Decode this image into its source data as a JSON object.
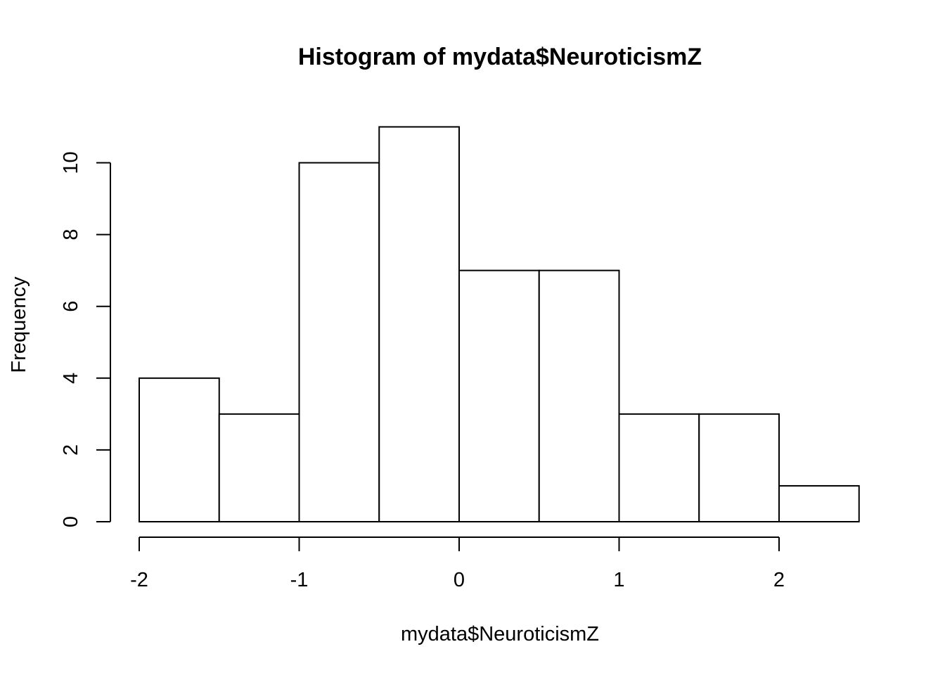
{
  "chart_data": {
    "type": "bar",
    "subtype": "histogram",
    "title": "Histogram of mydata$NeuroticismZ",
    "xlabel": "mydata$NeuroticismZ",
    "ylabel": "Frequency",
    "bins": [
      {
        "x0": -2.0,
        "x1": -1.5,
        "count": 4
      },
      {
        "x0": -1.5,
        "x1": -1.0,
        "count": 3
      },
      {
        "x0": -1.0,
        "x1": -0.5,
        "count": 10
      },
      {
        "x0": -0.5,
        "x1": 0.0,
        "count": 11
      },
      {
        "x0": 0.0,
        "x1": 0.5,
        "count": 7
      },
      {
        "x0": 0.5,
        "x1": 1.0,
        "count": 7
      },
      {
        "x0": 1.0,
        "x1": 1.5,
        "count": 3
      },
      {
        "x0": 1.5,
        "x1": 2.0,
        "count": 3
      },
      {
        "x0": 2.0,
        "x1": 2.5,
        "count": 1
      }
    ],
    "x_ticks": [
      "-2",
      "-1",
      "0",
      "1",
      "2"
    ],
    "x_tick_values": [
      -2,
      -1,
      0,
      1,
      2
    ],
    "y_ticks": [
      "0",
      "2",
      "4",
      "6",
      "8",
      "10"
    ],
    "y_tick_values": [
      0,
      2,
      4,
      6,
      8,
      10
    ],
    "xlim": [
      -2,
      2.5
    ],
    "ylim": [
      0,
      11
    ],
    "grid": false,
    "bar_fill": "#ffffff",
    "bar_stroke": "#000000"
  }
}
